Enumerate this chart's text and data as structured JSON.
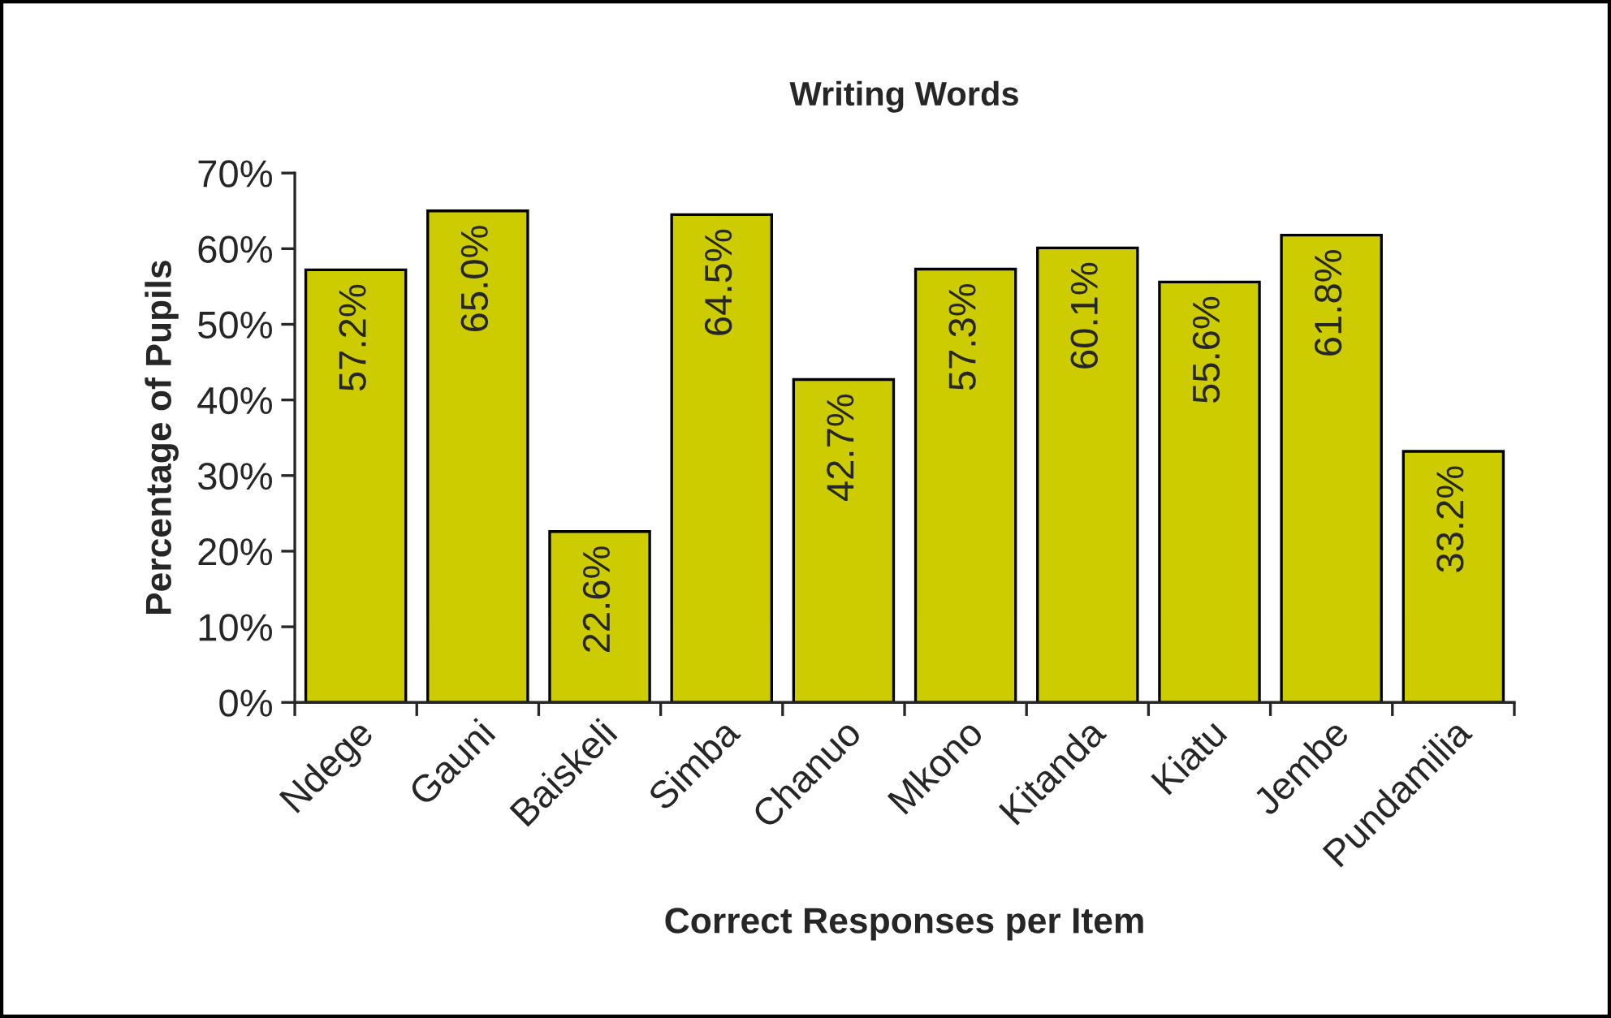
{
  "chart_data": {
    "type": "bar",
    "title": "Writing Words",
    "xlabel": "Correct Responses per Item",
    "ylabel": "Percentage of Pupils",
    "categories": [
      "Ndege",
      "Gauni",
      "Baiskeli",
      "Simba",
      "Chanuo",
      "Mkono",
      "Kitanda",
      "Kiatu",
      "Jembe",
      "Pundamilia"
    ],
    "values": [
      57.2,
      65.0,
      22.6,
      64.5,
      42.7,
      57.3,
      60.1,
      55.6,
      61.8,
      33.2
    ],
    "value_labels": [
      "57.2%",
      "65.0%",
      "22.6%",
      "64.5%",
      "42.7%",
      "57.3%",
      "60.1%",
      "55.6%",
      "61.8%",
      "33.2%"
    ],
    "color": "#cccc00",
    "ylim": [
      0,
      70
    ],
    "yticks": [
      {
        "value": 0,
        "label": "0%"
      },
      {
        "value": 10,
        "label": "10%"
      },
      {
        "value": 20,
        "label": "20%"
      },
      {
        "value": 30,
        "label": "30%"
      },
      {
        "value": 40,
        "label": "40%"
      },
      {
        "value": 50,
        "label": "50%"
      },
      {
        "value": 60,
        "label": "60%"
      },
      {
        "value": 70,
        "label": "70%"
      }
    ],
    "grid": false
  }
}
